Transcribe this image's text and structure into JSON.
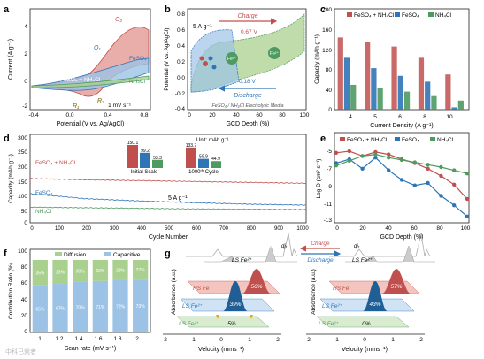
{
  "panels": {
    "a": {
      "letter": "a",
      "xlabel": "Potential (V vs. Ag/AgCl)",
      "ylabel": "Current (A g⁻¹)",
      "scan": "1 mV s⁻¹",
      "xticks": [
        "-0.4",
        "0.0",
        "0.4",
        "0.8"
      ],
      "yticks": [
        "4",
        "2",
        "0",
        "-2"
      ],
      "labels": {
        "o2": "O₂",
        "o1": "O₁",
        "r1": "R₁",
        "r2": "R₂",
        "feso4": "FeSO₄",
        "combo": "FeSO₄ + NH₄Cl",
        "nh4cl": "NH₄Cl"
      }
    },
    "b": {
      "letter": "b",
      "rate": "5 A g⁻¹",
      "charge": "Charge",
      "discharge": "Discharge",
      "v_top": "0.67 V",
      "v_bot": "0.18 V",
      "medium": "FeSO₄ / NH₄Cl Electrolytic Media",
      "fe_a": "Fe³⁺",
      "fe_b": "Fe²⁺",
      "xlabel": "GCD Depth (%)",
      "ylabel": "Potential (V vs. Ag/AgCl)",
      "xticks": [
        "0",
        "20",
        "40",
        "60",
        "80",
        "100"
      ],
      "yticks": [
        "0.8",
        "0.6",
        "0.4",
        "0.2",
        "0.0",
        "-0.2",
        "-0.4"
      ]
    },
    "c": {
      "letter": "c",
      "xlabel": "Current Density (A g⁻¹)",
      "ylabel": "Capacity (mAh g⁻¹)",
      "xticks": [
        "4",
        "5",
        "6",
        "8",
        "10"
      ],
      "yticks": [
        "200",
        "160",
        "120",
        "80",
        "40",
        "0"
      ],
      "legend": [
        "FeSO₄ + NH₄Cl",
        "FeSO₄",
        "NH₄Cl"
      ]
    },
    "d": {
      "letter": "d",
      "xlabel": "Cycle Number",
      "ylabel": "Capacity (mAh g⁻¹)",
      "rate": "5 A g⁻¹",
      "unit": "Unit: mAh g⁻¹",
      "init": "Initial Scale",
      "after": "1000ᵗʰ Cycle",
      "series": [
        "FeSO₄ + NH₄Cl",
        "FeSO₄",
        "NH₄Cl"
      ],
      "inset_init": [
        "150.1",
        "99.2",
        "53.3"
      ],
      "inset_after": [
        "133.7",
        "59.9",
        "44.9"
      ],
      "xticks": [
        "0",
        "100",
        "200",
        "300",
        "400",
        "500",
        "600",
        "700",
        "800",
        "900",
        "1000"
      ],
      "yticks": [
        "300",
        "250",
        "200",
        "150",
        "100",
        "50",
        "0"
      ]
    },
    "e": {
      "letter": "e",
      "xlabel": "GCD Depth (%)",
      "ylabel": "Log D (cm² s⁻¹)",
      "legend": [
        "FeSO₄ + NH₄Cl",
        "FeSO₄",
        "NH₄Cl"
      ],
      "xticks": [
        "0",
        "20",
        "40",
        "60",
        "80",
        "100"
      ],
      "yticks": [
        "-5",
        "-7",
        "-9",
        "-11",
        "-13"
      ]
    },
    "f": {
      "letter": "f",
      "xlabel": "Scan rate (mV s⁻¹)",
      "ylabel": "Contribution Ratio (%)",
      "legend": [
        "Diffusion",
        "Capacitive"
      ],
      "xticks": [
        "1",
        "1.2",
        "1.4",
        "1.6",
        "1.8",
        "2"
      ],
      "yticks": [
        "100",
        "80",
        "60",
        "40",
        "20",
        "0"
      ],
      "cap_labels": [
        "65%",
        "67%",
        "70%",
        "71%",
        "72%",
        "73%"
      ],
      "dif_labels": [
        "35%",
        "33%",
        "30%",
        "29%",
        "28%",
        "27%"
      ]
    },
    "g": {
      "letter": "g",
      "ylabel": "Absorbance (a.u.)",
      "xlabel": "Velocity (mms⁻¹)",
      "charge": "Charge",
      "discharge": "Discharge",
      "raw": "Raw Data",
      "left": {
        "hs": "HS Fe",
        "ls1": "LS Fe²⁺",
        "ls2": "LS Fe²⁺",
        "ls_top": "LS Fe²⁺",
        "pct_hs": "56%",
        "pct_ls": "39%",
        "pct_small": "5%"
      },
      "right": {
        "hs": "HS Fe",
        "ls1": "LS Fe²⁺",
        "ls2": "LS Fe²⁺",
        "ls_top": "LS Fe²⁺",
        "pct_hs": "57%",
        "pct_ls": "43%",
        "pct_small": "0%"
      },
      "xticks": [
        "-2",
        "-1",
        "0",
        "1",
        "2"
      ],
      "dj": "dj₁"
    }
  },
  "watermark": "中科已就者",
  "colors": {
    "red": "#c0504d",
    "blue": "#2e75b6",
    "green": "#4e9a61",
    "light_red": "#e39a94",
    "light_blue": "#9cc3e6",
    "light_green": "#a9d08e"
  },
  "chart_data": [
    {
      "type": "line",
      "panel": "a",
      "series": [
        {
          "name": "FeSO₄ + NH₄Cl",
          "x": [
            -0.4,
            -0.2,
            0.0,
            0.2,
            0.4,
            0.55,
            0.7,
            0.8,
            0.8,
            0.6,
            0.4,
            0.2,
            0.0,
            -0.2,
            -0.4
          ],
          "y": [
            0.1,
            0.2,
            0.4,
            1.2,
            2.6,
            3.6,
            4.1,
            3.8,
            1.0,
            -1.0,
            -2.4,
            -1.6,
            -0.6,
            -0.2,
            -0.1
          ]
        },
        {
          "name": "FeSO₄",
          "x": [
            -0.4,
            0.0,
            0.4,
            0.6,
            0.8,
            0.8,
            0.5,
            0.2,
            -0.1,
            -0.4
          ],
          "y": [
            0.0,
            0.2,
            0.7,
            1.2,
            1.6,
            0.5,
            -0.8,
            -1.1,
            -0.4,
            -0.1
          ]
        },
        {
          "name": "NH₄Cl",
          "x": [
            -0.4,
            0.0,
            0.4,
            0.8,
            0.8,
            0.4,
            0.0,
            -0.4
          ],
          "y": [
            0.0,
            0.1,
            0.2,
            0.4,
            0.0,
            -0.2,
            -0.2,
            -0.1
          ]
        }
      ],
      "xlim": [
        -0.4,
        0.8
      ],
      "ylim": [
        -2.5,
        4.5
      ]
    },
    {
      "type": "line",
      "panel": "b",
      "series": [
        {
          "name": "Charge",
          "x": [
            0,
            20,
            40,
            60,
            80,
            100
          ],
          "y": [
            0.05,
            0.42,
            0.5,
            0.55,
            0.62,
            0.78
          ]
        },
        {
          "name": "Discharge",
          "x": [
            0,
            20,
            40,
            60,
            80,
            100
          ],
          "y": [
            0.4,
            0.2,
            0.12,
            0.05,
            -0.05,
            -0.22
          ]
        }
      ],
      "xlim": [
        0,
        100
      ],
      "ylim": [
        -0.4,
        0.8
      ]
    },
    {
      "type": "bar",
      "panel": "c",
      "categories": [
        "4",
        "5",
        "6",
        "8",
        "10"
      ],
      "series": [
        {
          "name": "FeSO₄ + NH₄Cl",
          "values": [
            160,
            150,
            140,
            115,
            78
          ]
        },
        {
          "name": "FeSO₄",
          "values": [
            115,
            92,
            75,
            62,
            5
          ]
        },
        {
          "name": "NH₄Cl",
          "values": [
            55,
            48,
            40,
            30,
            20
          ]
        }
      ],
      "ylim": [
        0,
        200
      ]
    },
    {
      "type": "line",
      "panel": "d",
      "series": [
        {
          "name": "FeSO₄ + NH₄Cl",
          "x": [
            0,
            200,
            400,
            600,
            800,
            1000
          ],
          "y": [
            150,
            146,
            143,
            140,
            137,
            134
          ]
        },
        {
          "name": "FeSO₄",
          "x": [
            0,
            200,
            400,
            600,
            800,
            1000
          ],
          "y": [
            99,
            82,
            74,
            68,
            63,
            60
          ]
        },
        {
          "name": "NH₄Cl",
          "x": [
            0,
            200,
            400,
            600,
            800,
            1000
          ],
          "y": [
            53,
            51,
            49,
            47,
            46,
            45
          ]
        }
      ],
      "xlim": [
        0,
        1000
      ],
      "ylim": [
        0,
        300
      ]
    },
    {
      "type": "line",
      "panel": "e",
      "series": [
        {
          "name": "FeSO₄ + NH₄Cl",
          "x": [
            0,
            10,
            20,
            30,
            40,
            50,
            60,
            70,
            80,
            90,
            100
          ],
          "y": [
            -5.2,
            -5.0,
            -5.6,
            -5.1,
            -5.4,
            -6.0,
            -6.5,
            -7.2,
            -8.1,
            -9.2,
            -11.0
          ]
        },
        {
          "name": "FeSO₄",
          "x": [
            0,
            10,
            20,
            30,
            40,
            50,
            60,
            70,
            80,
            90,
            100
          ],
          "y": [
            -6.5,
            -6.0,
            -7.2,
            -5.8,
            -7.4,
            -8.6,
            -9.3,
            -9.0,
            -10.6,
            -11.8,
            -13.2
          ]
        },
        {
          "name": "NH₄Cl",
          "x": [
            0,
            10,
            20,
            30,
            40,
            50,
            60,
            70,
            80,
            90,
            100
          ],
          "y": [
            -6.8,
            -6.2,
            -5.6,
            -5.4,
            -5.8,
            -6.1,
            -6.4,
            -6.7,
            -7.0,
            -7.4,
            -7.8
          ]
        }
      ],
      "xlim": [
        0,
        100
      ],
      "ylim": [
        -14,
        -4
      ]
    },
    {
      "type": "bar",
      "panel": "f",
      "categories": [
        "1",
        "1.2",
        "1.4",
        "1.6",
        "1.8",
        "2"
      ],
      "series": [
        {
          "name": "Capacitive",
          "values": [
            65,
            67,
            70,
            71,
            72,
            73
          ]
        },
        {
          "name": "Diffusion",
          "values": [
            35,
            33,
            30,
            29,
            28,
            27
          ]
        }
      ],
      "ylim": [
        0,
        100
      ]
    }
  ]
}
